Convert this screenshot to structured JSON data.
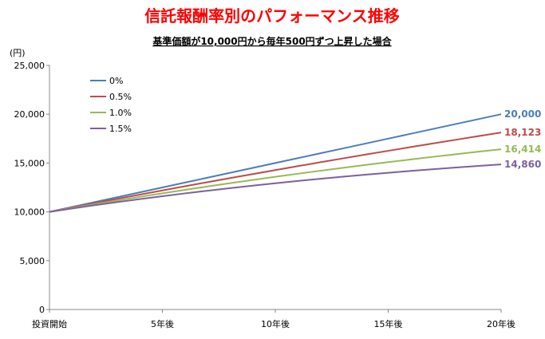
{
  "chart_data": {
    "type": "line",
    "title": "信託報酬率別のパフォーマンス推移",
    "subtitle": "基準価額が10,000円から毎年500円ずつ上昇した場合",
    "ylabel": "(円)",
    "xlabel": "",
    "xlim": [
      0,
      20
    ],
    "ylim": [
      0,
      25000
    ],
    "yticks": [
      0,
      5000,
      10000,
      15000,
      20000,
      25000
    ],
    "ytick_labels": [
      "0",
      "5,000",
      "10,000",
      "15,000",
      "20,000",
      "25,000"
    ],
    "xticks": [
      0,
      5,
      10,
      15,
      20
    ],
    "xtick_labels": [
      "投資開始",
      "5年後",
      "10年後",
      "15年後",
      "20年後"
    ],
    "grid": false,
    "legend_position": "top-left",
    "x": [
      0,
      1,
      2,
      3,
      4,
      5,
      6,
      7,
      8,
      9,
      10,
      11,
      12,
      13,
      14,
      15,
      16,
      17,
      18,
      19,
      20
    ],
    "series": [
      {
        "name": "0%",
        "color": "#4a7ebb",
        "end_label": "20,000",
        "values": [
          10000,
          10500,
          11000,
          11500,
          12000,
          12500,
          13000,
          13500,
          14000,
          14500,
          15000,
          15500,
          16000,
          16500,
          17000,
          17500,
          18000,
          18500,
          19000,
          19500,
          20000
        ]
      },
      {
        "name": "0.5%",
        "color": "#be4b48",
        "end_label": "18,123",
        "values": [
          10000,
          10448,
          10892,
          11331,
          11766,
          12196,
          12621,
          13042,
          13459,
          13871,
          14279,
          14682,
          15081,
          15476,
          15867,
          16253,
          16635,
          17013,
          17387,
          17757,
          18123
        ]
      },
      {
        "name": "1.0%",
        "color": "#98b954",
        "end_label": "16,414",
        "values": [
          10000,
          10397,
          10785,
          11164,
          11535,
          11898,
          12252,
          12598,
          12936,
          13266,
          13589,
          13904,
          14211,
          14511,
          14804,
          15090,
          15368,
          15640,
          15905,
          16163,
          16414
        ]
      },
      {
        "name": "1.5%",
        "color": "#7d60a0",
        "end_label": "14,860",
        "values": [
          10000,
          10345,
          10678,
          10999,
          11308,
          11605,
          11892,
          12167,
          12432,
          12686,
          12930,
          13164,
          13388,
          13603,
          13808,
          14005,
          14193,
          14372,
          14543,
          14705,
          14860
        ]
      }
    ],
    "colors": {
      "title": "#ff0000"
    }
  }
}
